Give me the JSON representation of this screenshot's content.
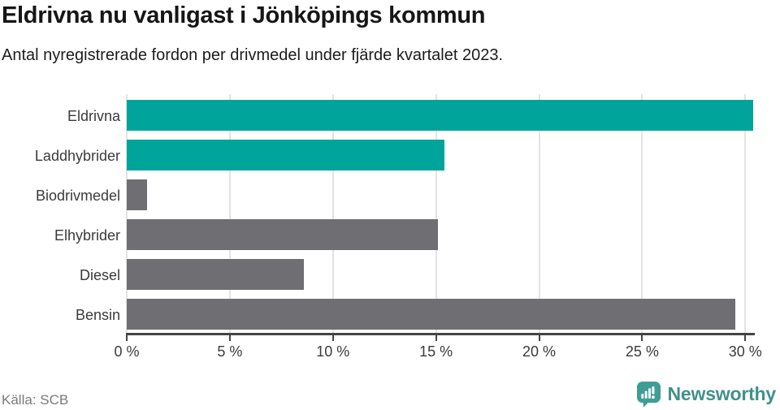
{
  "header": {
    "title": "Eldrivna nu vanligast i Jönköpings kommun",
    "subtitle": "Antal nyregistrerade fordon per drivmedel under fjärde kvartalet 2023."
  },
  "chart_data": {
    "type": "bar",
    "orientation": "horizontal",
    "title": "Eldrivna nu vanligast i Jönköpings kommun",
    "subtitle": "Antal nyregistrerade fordon per drivmedel under fjärde kvartalet 2023.",
    "categories": [
      "Eldrivna",
      "Laddhybrider",
      "Biodrivmedel",
      "Elhybrider",
      "Diesel",
      "Bensin"
    ],
    "values": [
      30.4,
      15.4,
      1.0,
      15.1,
      8.6,
      29.5
    ],
    "unit": "%",
    "bar_colors": [
      "#00a49b",
      "#00a49b",
      "#6e6e73",
      "#6e6e73",
      "#6e6e73",
      "#6e6e73"
    ],
    "x_ticks": [
      "0 %",
      "5 %",
      "10 %",
      "15 %",
      "20 %",
      "25 %",
      "30 %"
    ],
    "x_tick_values": [
      0,
      5,
      10,
      15,
      20,
      25,
      30
    ],
    "xlim": [
      0,
      30.5
    ],
    "grid": true,
    "legend": false,
    "xlabel": "",
    "ylabel": ""
  },
  "footer": {
    "source": "Källa: SCB",
    "brand": "Newsworthy",
    "logo_icon": "newsworthy-speech-bubble-chart-icon"
  },
  "colors": {
    "accent_teal": "#00a49b",
    "bar_gray": "#6e6e73",
    "gridline": "#e3e3e3",
    "axis": "#454545",
    "text_dark": "#161616",
    "label_gray": "#3b3b3b",
    "source_gray": "#7a7a7a",
    "brand_teal": "#3f9d96",
    "brand_text_teal": "#41908c"
  }
}
